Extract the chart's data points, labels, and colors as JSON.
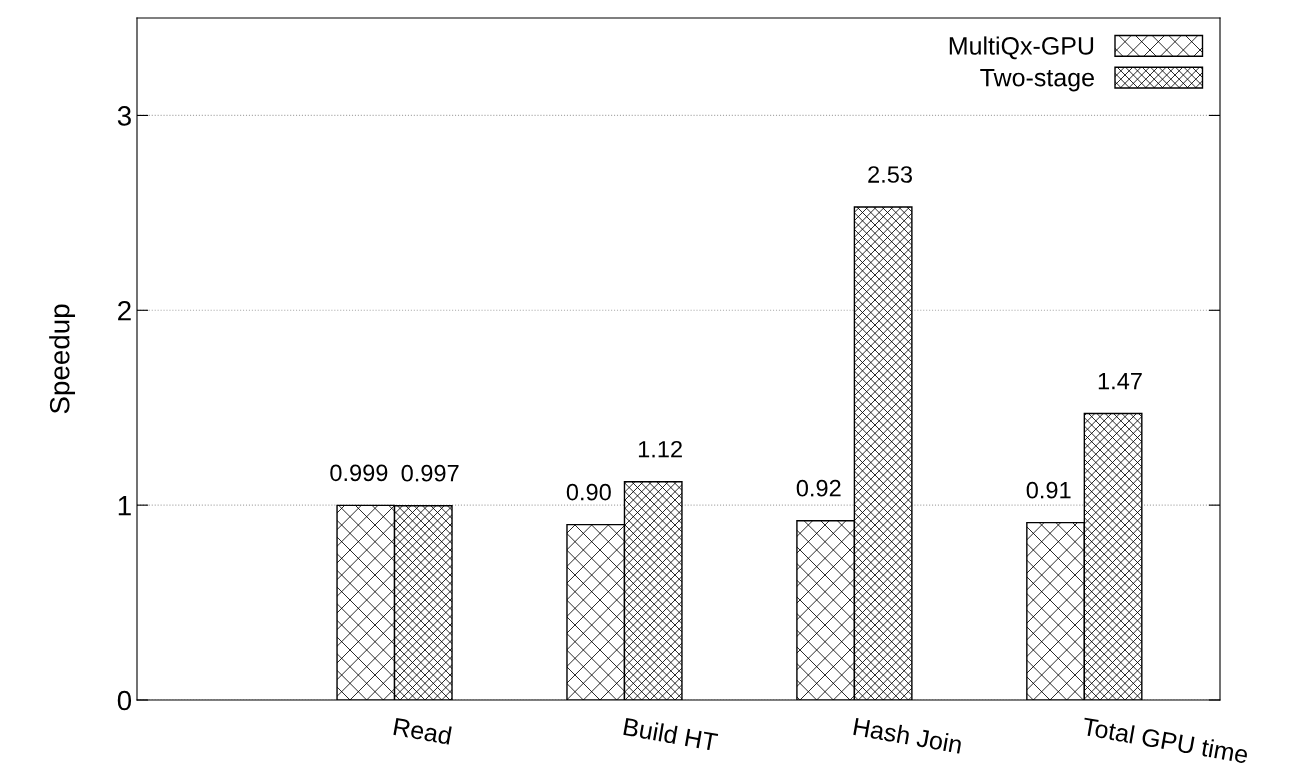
{
  "chart_data": {
    "type": "bar",
    "ylabel": "Speedup",
    "categories": [
      "Read",
      "Build HT",
      "Hash Join",
      "Total GPU time"
    ],
    "series": [
      {
        "name": "MultiQx-GPU",
        "color": "#000000",
        "values": [
          0.999,
          0.9,
          0.92,
          0.91
        ],
        "value_labels": [
          "0.999",
          "0.90",
          "0.92",
          "0.91"
        ]
      },
      {
        "name": "Two-stage",
        "color": "#000000",
        "values": [
          0.997,
          1.12,
          2.53,
          1.47
        ],
        "value_labels": [
          "0.997",
          "1.12",
          "2.53",
          "1.47"
        ]
      }
    ],
    "ylim": [
      0,
      3.5
    ],
    "yticks": [
      0,
      1,
      2,
      3
    ],
    "grid": "y",
    "legend": "top right"
  }
}
